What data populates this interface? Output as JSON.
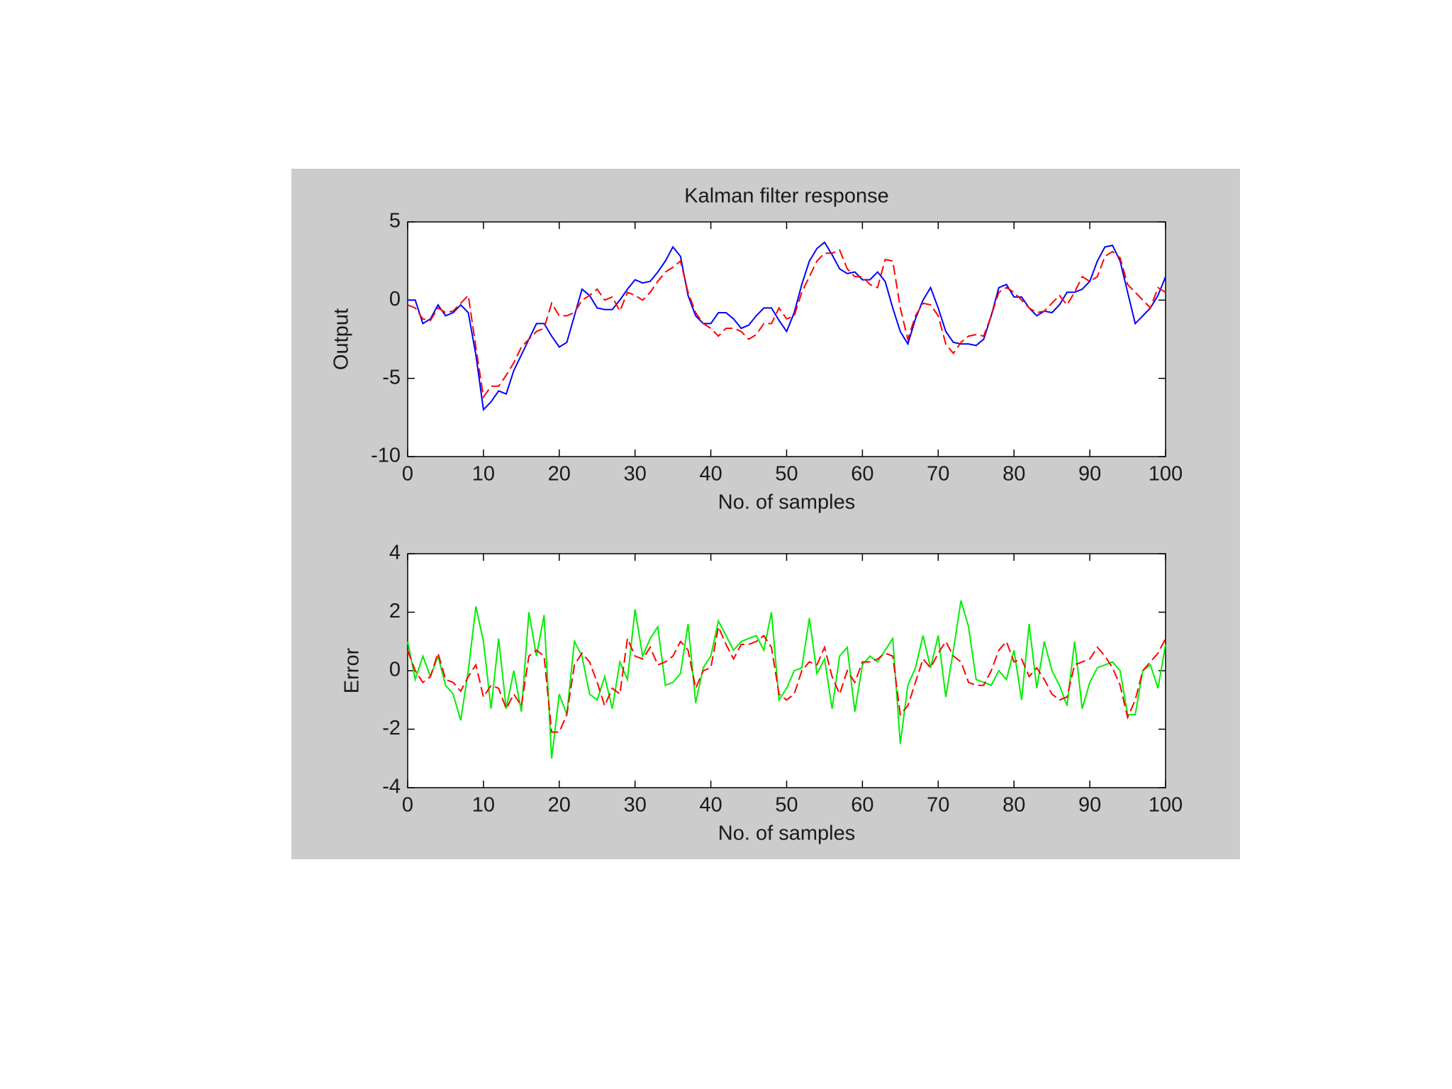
{
  "chart_data": [
    {
      "type": "line",
      "title": "Kalman filter response",
      "xlabel": "No. of samples",
      "ylabel": "Output",
      "xlim": [
        0,
        100
      ],
      "xticks": [
        0,
        10,
        20,
        30,
        40,
        50,
        60,
        70,
        80,
        90,
        100
      ],
      "ylim": [
        -10,
        5
      ],
      "yticks": [
        -10,
        -5,
        0,
        5
      ],
      "x": [
        0,
        1,
        2,
        3,
        4,
        5,
        6,
        7,
        8,
        9,
        10,
        11,
        12,
        13,
        14,
        15,
        16,
        17,
        18,
        19,
        20,
        21,
        22,
        23,
        24,
        25,
        26,
        27,
        28,
        29,
        30,
        31,
        32,
        33,
        34,
        35,
        36,
        37,
        38,
        39,
        40,
        41,
        42,
        43,
        44,
        45,
        46,
        47,
        48,
        49,
        50,
        51,
        52,
        53,
        54,
        55,
        56,
        57,
        58,
        59,
        60,
        61,
        62,
        63,
        64,
        65,
        66,
        67,
        68,
        69,
        70,
        71,
        72,
        73,
        74,
        75,
        76,
        77,
        78,
        79,
        80,
        81,
        82,
        83,
        84,
        85,
        86,
        87,
        88,
        89,
        90,
        91,
        92,
        93,
        94,
        95,
        96,
        97,
        98,
        99,
        100
      ],
      "series": [
        {
          "color": "#0000ff",
          "linestyle": "solid",
          "values": [
            0,
            0,
            -1.5,
            -1.2,
            -0.3,
            -1,
            -0.8,
            -0.3,
            -0.8,
            -3.5,
            -7,
            -6.5,
            -5.8,
            -6,
            -4.5,
            -3.5,
            -2.5,
            -1.5,
            -1.5,
            -2.3,
            -3,
            -2.7,
            -1,
            0.7,
            0.3,
            -0.5,
            -0.6,
            -0.6,
            0,
            0.7,
            1.3,
            1.1,
            1.2,
            1.8,
            2.5,
            3.4,
            2.8,
            0.3,
            -1,
            -1.5,
            -1.5,
            -0.8,
            -0.8,
            -1.2,
            -1.8,
            -1.6,
            -1,
            -0.5,
            -0.5,
            -1.3,
            -2,
            -0.8,
            1,
            2.5,
            3.3,
            3.7,
            2.9,
            2,
            1.7,
            1.8,
            1.3,
            1.3,
            1.8,
            1.2,
            -0.5,
            -2,
            -2.8,
            -1.2,
            0,
            0.8,
            -0.5,
            -2,
            -2.7,
            -2.8,
            -2.8,
            -2.9,
            -2.5,
            -1,
            0.8,
            1,
            0.2,
            0.2,
            -0.5,
            -1,
            -0.7,
            -0.8,
            -0.3,
            0.5,
            0.5,
            0.7,
            1.2,
            2.5,
            3.4,
            3.5,
            2.5,
            0.5,
            -1.5,
            -1,
            -0.5,
            0.3,
            1.5
          ]
        },
        {
          "color": "#ff0000",
          "linestyle": "dashed",
          "values": [
            -0.3,
            -0.5,
            -1.2,
            -1.3,
            -0.5,
            -0.8,
            -0.7,
            -0.2,
            0.3,
            -3,
            -6.2,
            -5.5,
            -5.5,
            -4.8,
            -4,
            -3,
            -2.5,
            -2,
            -1.8,
            -0.2,
            -1,
            -1,
            -0.8,
            0,
            0.3,
            0.7,
            0,
            0.2,
            -0.7,
            0.5,
            0.3,
            0,
            0.5,
            1.2,
            1.8,
            2.1,
            2.5,
            0.5,
            -0.8,
            -1.5,
            -1.8,
            -2.3,
            -1.8,
            -1.8,
            -2,
            -2.5,
            -2.2,
            -1.5,
            -1.5,
            -0.5,
            -1.2,
            -1,
            0.5,
            1.5,
            2.5,
            3,
            3,
            3.2,
            2,
            1.5,
            1.5,
            1,
            0.8,
            2.6,
            2.5,
            -0.5,
            -2.5,
            -1,
            -0.2,
            -0.3,
            -1,
            -2.8,
            -3.4,
            -2.7,
            -2.3,
            -2.2,
            -2.3,
            -1,
            0.5,
            0.8,
            0.5,
            0,
            -0.5,
            -0.8,
            -0.7,
            -0.2,
            0.3,
            -0.3,
            0.5,
            1.5,
            1.2,
            1.5,
            2.8,
            3.1,
            2.7,
            1,
            0.5,
            0,
            -0.5,
            0.8,
            0.5
          ]
        }
      ]
    },
    {
      "type": "line",
      "xlabel": "No. of samples",
      "ylabel": "Error",
      "xlim": [
        0,
        100
      ],
      "xticks": [
        0,
        10,
        20,
        30,
        40,
        50,
        60,
        70,
        80,
        90,
        100
      ],
      "ylim": [
        -4,
        4
      ],
      "yticks": [
        -4,
        -2,
        0,
        2,
        4
      ],
      "x": [
        0,
        1,
        2,
        3,
        4,
        5,
        6,
        7,
        8,
        9,
        10,
        11,
        12,
        13,
        14,
        15,
        16,
        17,
        18,
        19,
        20,
        21,
        22,
        23,
        24,
        25,
        26,
        27,
        28,
        29,
        30,
        31,
        32,
        33,
        34,
        35,
        36,
        37,
        38,
        39,
        40,
        41,
        42,
        43,
        44,
        45,
        46,
        47,
        48,
        49,
        50,
        51,
        52,
        53,
        54,
        55,
        56,
        57,
        58,
        59,
        60,
        61,
        62,
        63,
        64,
        65,
        66,
        67,
        68,
        69,
        70,
        71,
        72,
        73,
        74,
        75,
        76,
        77,
        78,
        79,
        80,
        81,
        82,
        83,
        84,
        85,
        86,
        87,
        88,
        89,
        90,
        91,
        92,
        93,
        94,
        95,
        96,
        97,
        98,
        99,
        100
      ],
      "series": [
        {
          "color": "#00ee00",
          "linestyle": "solid",
          "values": [
            1,
            -0.3,
            0.5,
            -0.2,
            0.5,
            -0.5,
            -0.8,
            -1.7,
            0,
            2.2,
            1,
            -1.3,
            1.1,
            -1.3,
            0,
            -1.4,
            2,
            0.5,
            1.9,
            -3,
            -0.8,
            -1.5,
            1,
            0.5,
            -0.8,
            -1,
            -0.2,
            -1.3,
            0.3,
            -0.3,
            2.1,
            0.5,
            1.1,
            1.5,
            -0.5,
            -0.4,
            -0.1,
            1.6,
            -1.1,
            0.1,
            0.5,
            1.7,
            1.2,
            0.7,
            1,
            1.1,
            1.2,
            0.7,
            2,
            -1,
            -0.6,
            0,
            0.1,
            1.8,
            -0.1,
            0.4,
            -1.3,
            0.5,
            0.8,
            -1.4,
            0.2,
            0.5,
            0.3,
            0.7,
            1.1,
            -2.5,
            -0.5,
            0.1,
            1.2,
            0.1,
            1.2,
            -0.9,
            0.7,
            2.4,
            1.5,
            -0.3,
            -0.4,
            -0.5,
            0,
            -0.3,
            0.7,
            -1,
            1.6,
            -0.6,
            1,
            0,
            -0.5,
            -1.2,
            1,
            -1.3,
            -0.4,
            0.1,
            0.2,
            0.3,
            0,
            -1.5,
            -1.5,
            0,
            0.2,
            -0.6,
            0.9
          ]
        },
        {
          "color": "#ff0000",
          "linestyle": "dashed",
          "values": [
            0.7,
            0,
            -0.4,
            -0.2,
            0.6,
            -0.3,
            -0.4,
            -0.7,
            -0.2,
            0.2,
            -0.9,
            -0.5,
            -0.6,
            -1.3,
            -0.8,
            -1.2,
            0.5,
            0.7,
            0.5,
            -2.1,
            -2.1,
            -1.5,
            0.2,
            0.6,
            0.3,
            -0.4,
            -1.2,
            -0.6,
            -0.8,
            1.1,
            0.5,
            0.4,
            0.8,
            0.2,
            0.3,
            0.5,
            1,
            0.7,
            -0.6,
            0,
            0.1,
            1.5,
            0.9,
            0.4,
            0.9,
            0.9,
            1,
            1.2,
            0.8,
            -0.8,
            -1,
            -0.8,
            0,
            0.3,
            0.2,
            0.8,
            -0.2,
            -0.8,
            0,
            -0.4,
            0.3,
            0.3,
            0.4,
            0.6,
            0.5,
            -1.5,
            -1.2,
            -0.4,
            0.4,
            0.1,
            0.6,
            1,
            0.5,
            0.3,
            -0.4,
            -0.5,
            -0.5,
            0,
            0.7,
            1,
            0.3,
            0.4,
            -0.2,
            0.1,
            -0.3,
            -0.8,
            -1,
            -0.9,
            0.2,
            0.3,
            0.4,
            0.8,
            0.5,
            0.1,
            -0.5,
            -1.6,
            -1,
            0,
            0.3,
            0.6,
            1.1
          ]
        }
      ]
    }
  ]
}
